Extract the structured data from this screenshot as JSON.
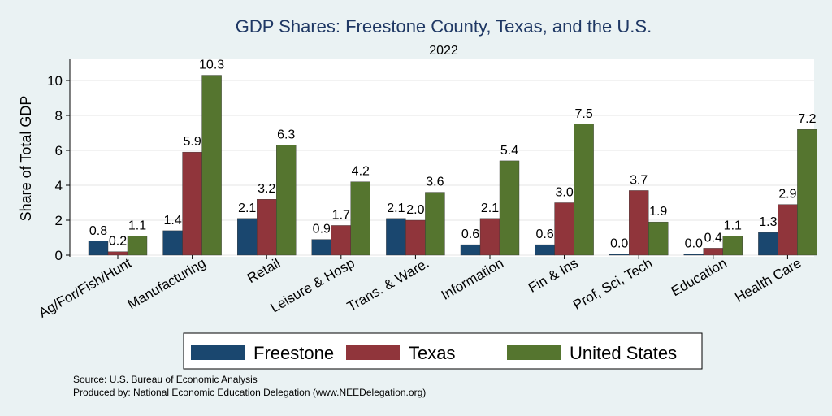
{
  "chart_data": {
    "type": "bar",
    "title": "GDP Shares: Freestone County, Texas, and the U.S.",
    "subtitle": "2022",
    "xlabel": "",
    "ylabel": "Share of Total GDP",
    "ylim": [
      0,
      11
    ],
    "yticks": [
      "0",
      "2",
      "4",
      "6",
      "8",
      "10"
    ],
    "grid": true,
    "legend_position": "bottom",
    "categories": [
      "Ag/For/Fish/Hunt",
      "Manufacturing",
      "Retail",
      "Leisure & Hosp",
      "Trans. & Ware.",
      "Information",
      "Fin & Ins",
      "Prof, Sci, Tech",
      "Education",
      "Health Care"
    ],
    "series": [
      {
        "name": "Freestone",
        "color": "#1a476f",
        "values": [
          0.8,
          1.4,
          2.1,
          0.9,
          2.1,
          0.6,
          0.6,
          0.0,
          0.0,
          1.3
        ],
        "labels": [
          "0.8",
          "1.4",
          "2.1",
          "0.9",
          "2.1",
          "0.6",
          "0.6",
          "0.0",
          "0.0",
          "1.3"
        ]
      },
      {
        "name": "Texas",
        "color": "#90353b",
        "values": [
          0.2,
          5.9,
          3.2,
          1.7,
          2.0,
          2.1,
          3.0,
          3.7,
          0.4,
          2.9
        ],
        "labels": [
          "0.2",
          "5.9",
          "3.2",
          "1.7",
          "2.0",
          "2.1",
          "3.0",
          "3.7",
          "0.4",
          "2.9"
        ]
      },
      {
        "name": "United States",
        "color": "#55752f",
        "values": [
          1.1,
          10.3,
          6.3,
          4.2,
          3.6,
          5.4,
          7.5,
          1.9,
          1.1,
          7.2
        ],
        "labels": [
          "1.1",
          "10.3",
          "6.3",
          "4.2",
          "3.6",
          "5.4",
          "7.5",
          "1.9",
          "1.1",
          "7.2"
        ]
      }
    ]
  },
  "notes": {
    "source": "Source: U.S. Bureau of Economic Analysis",
    "produced": "Produced by: National Economic Education Delegation (www.NEEDelegation.org)"
  }
}
